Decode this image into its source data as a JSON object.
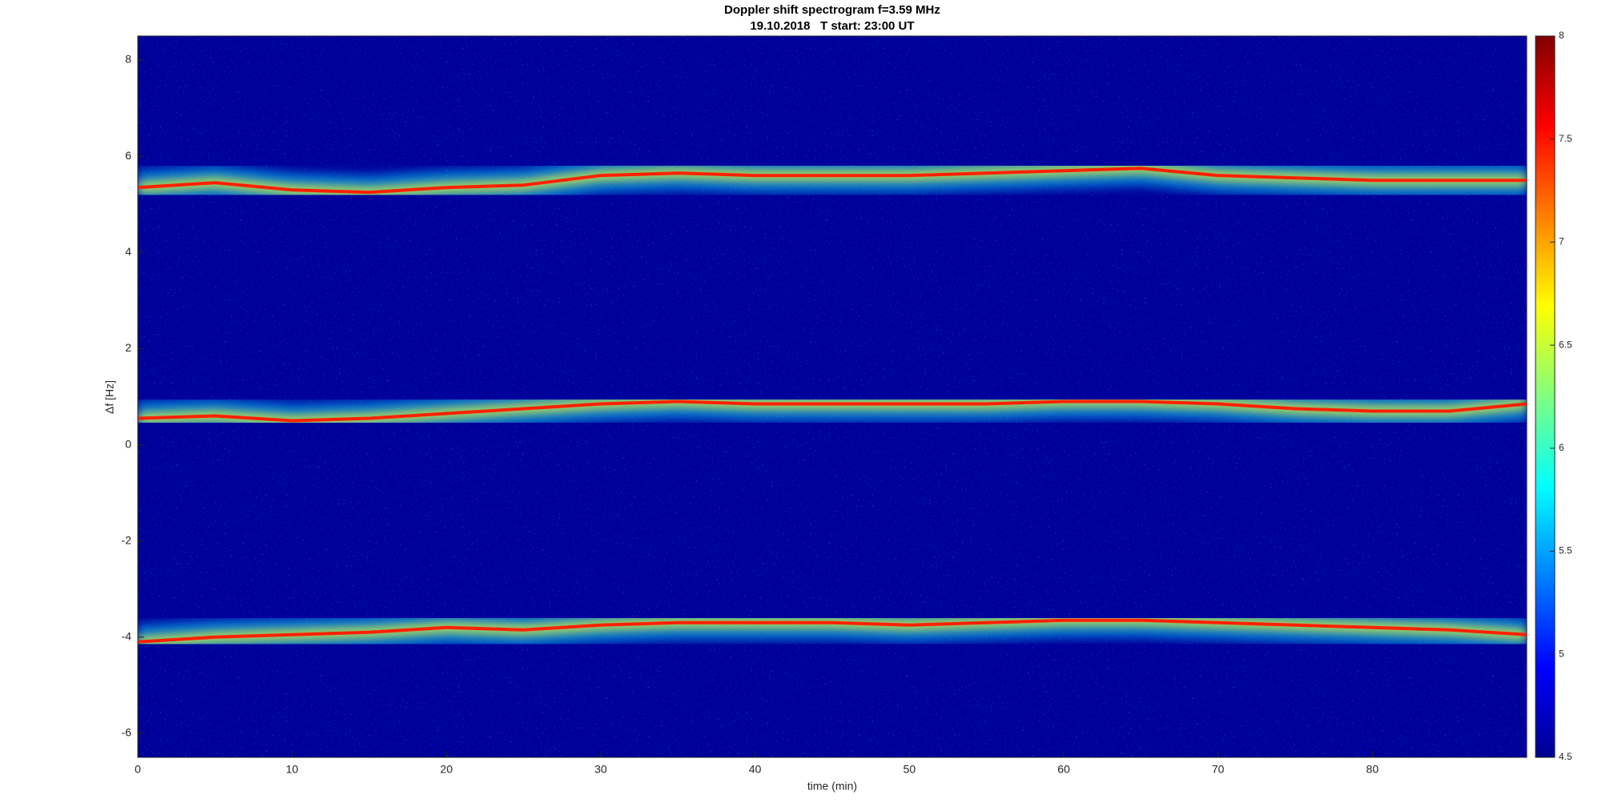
{
  "chart_data": {
    "type": "spectrogram",
    "title": "Doppler shift spectrogram f=3.59 MHz",
    "subtitle": "19.10.2018   T start: 23:00 UT",
    "x_label": "time (min)",
    "y_label": "Δf [Hz]",
    "x": [
      0,
      5,
      10,
      15,
      20,
      25,
      30,
      35,
      40,
      45,
      50,
      55,
      60,
      65,
      70,
      75,
      80,
      85,
      90
    ],
    "series": [
      {
        "color": "#ff2000",
        "values": [
          5.35,
          5.45,
          5.3,
          5.25,
          5.35,
          5.4,
          5.6,
          5.65,
          5.6,
          5.6,
          5.6,
          5.65,
          5.7,
          5.75,
          5.6,
          5.55,
          5.5,
          5.5,
          5.5
        ]
      },
      {
        "color": "#ff2000",
        "values": [
          0.55,
          0.6,
          0.5,
          0.55,
          0.65,
          0.75,
          0.85,
          0.9,
          0.85,
          0.85,
          0.85,
          0.85,
          0.9,
          0.9,
          0.85,
          0.75,
          0.7,
          0.7,
          0.85
        ]
      },
      {
        "color": "#ff2000",
        "values": [
          -4.1,
          -4.0,
          -3.95,
          -3.9,
          -3.8,
          -3.85,
          -3.75,
          -3.7,
          -3.7,
          -3.7,
          -3.75,
          -3.7,
          -3.65,
          -3.65,
          -3.7,
          -3.75,
          -3.8,
          -3.85,
          -3.95
        ]
      }
    ],
    "xlim": [
      0,
      90
    ],
    "xticks": [
      0,
      10,
      20,
      30,
      40,
      50,
      60,
      70,
      80
    ],
    "ylim": [
      -6.5,
      8.5
    ],
    "yticks": [
      -6,
      -4,
      -2,
      0,
      2,
      4,
      6,
      8
    ],
    "colorbar": {
      "lim": [
        4.5,
        8
      ],
      "ticks": [
        4.5,
        5,
        5.5,
        6,
        6.5,
        7,
        7.5,
        8
      ]
    }
  }
}
